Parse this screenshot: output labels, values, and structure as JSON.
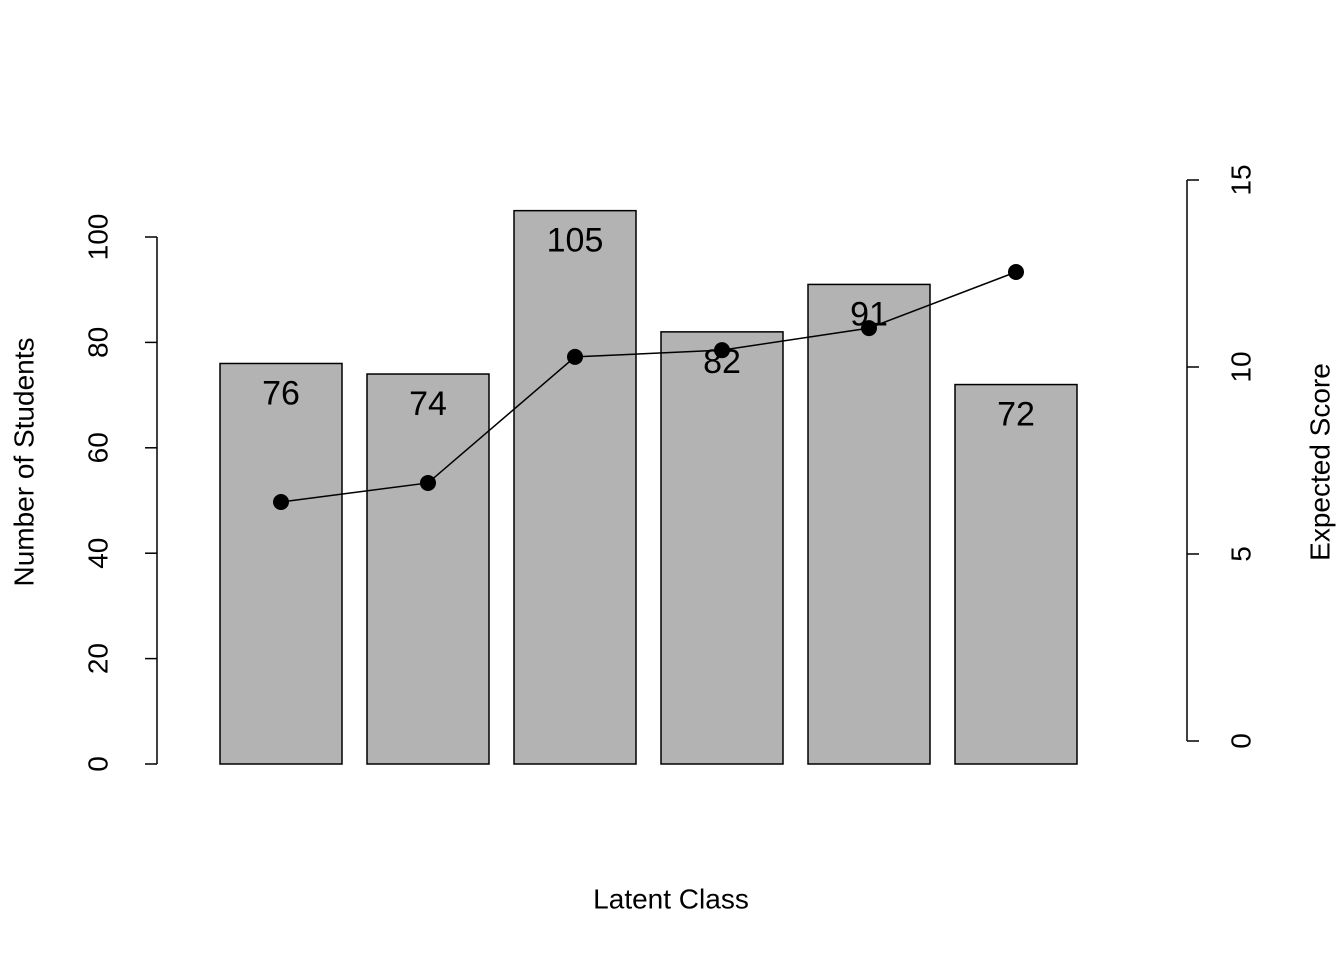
{
  "chart_data": {
    "type": "bar",
    "xlabel": "Latent Class",
    "ylabel": "Number of Students",
    "y2label": "Expected Score",
    "categories": [
      null,
      null,
      null,
      null,
      null,
      null
    ],
    "series": [
      {
        "values": [
          76,
          74,
          105,
          82,
          91,
          72
        ],
        "color": "#b3b3b3"
      },
      {
        "type": "line",
        "axis": "y2",
        "values": [
          6.39,
          6.9,
          10.27,
          10.45,
          11.04,
          12.54
        ],
        "color": "#000000"
      }
    ],
    "ylim": [
      0,
      100
    ],
    "yticks": [
      0,
      20,
      40,
      60,
      80,
      100
    ],
    "y2lim": [
      0,
      15
    ],
    "y2ticks": [
      0,
      5,
      10,
      15
    ]
  }
}
